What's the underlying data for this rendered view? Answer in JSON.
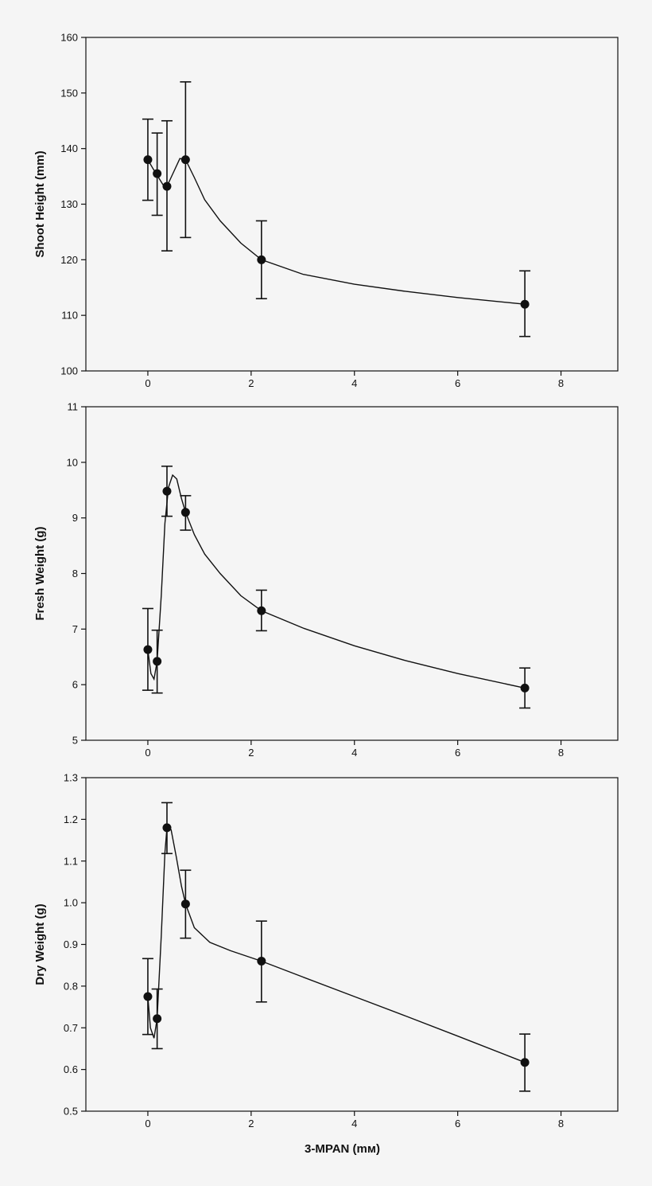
{
  "chart_data": [
    {
      "type": "scatter",
      "ylabel": "Shoot Height (mm)",
      "xlabel": "",
      "xlim": [
        -1.2,
        9.1
      ],
      "ylim": [
        100,
        160
      ],
      "xticks": [
        0,
        2,
        4,
        6,
        8
      ],
      "yticks": [
        100,
        110,
        120,
        130,
        140,
        150,
        160
      ],
      "tick_labels_y": [
        "100",
        "110",
        "120",
        "130",
        "140",
        "150",
        "160"
      ],
      "x": [
        0,
        0.18,
        0.37,
        0.73,
        2.2,
        7.3
      ],
      "y": [
        138,
        135.5,
        133.2,
        138,
        120,
        112
      ],
      "yerr_low": [
        130.7,
        128,
        121.6,
        124,
        113,
        106.2
      ],
      "yerr_high": [
        145.3,
        142.8,
        145,
        152,
        127,
        118
      ],
      "curve": [
        [
          0,
          138
        ],
        [
          0.1,
          136.4
        ],
        [
          0.2,
          134.9
        ],
        [
          0.3,
          133.4
        ],
        [
          0.4,
          133.8
        ],
        [
          0.5,
          135.8
        ],
        [
          0.62,
          138.2
        ],
        [
          0.73,
          138
        ],
        [
          0.9,
          134.8
        ],
        [
          1.1,
          130.8
        ],
        [
          1.4,
          127
        ],
        [
          1.8,
          123
        ],
        [
          2.2,
          120
        ],
        [
          3,
          117.4
        ],
        [
          4,
          115.6
        ],
        [
          5,
          114.3
        ],
        [
          6,
          113.2
        ],
        [
          7.3,
          112
        ]
      ]
    },
    {
      "type": "scatter",
      "ylabel": "Fresh Weight (g)",
      "xlabel": "",
      "xlim": [
        -1.2,
        9.1
      ],
      "ylim": [
        5,
        11
      ],
      "xticks": [
        0,
        2,
        4,
        6,
        8
      ],
      "yticks": [
        5,
        6,
        7,
        8,
        9,
        10,
        11
      ],
      "tick_labels_y": [
        "5",
        "6",
        "7",
        "8",
        "9",
        "10",
        "11"
      ],
      "x": [
        0,
        0.18,
        0.37,
        0.73,
        2.2,
        7.3
      ],
      "y": [
        6.63,
        6.42,
        9.48,
        9.1,
        7.33,
        5.94
      ],
      "yerr_low": [
        5.9,
        5.85,
        9.03,
        8.78,
        6.97,
        5.58
      ],
      "yerr_high": [
        7.37,
        6.98,
        9.93,
        9.4,
        7.7,
        6.3
      ],
      "curve": [
        [
          0,
          6.63
        ],
        [
          0.06,
          6.2
        ],
        [
          0.12,
          6.1
        ],
        [
          0.18,
          6.42
        ],
        [
          0.26,
          7.6
        ],
        [
          0.33,
          8.9
        ],
        [
          0.4,
          9.55
        ],
        [
          0.48,
          9.77
        ],
        [
          0.56,
          9.7
        ],
        [
          0.65,
          9.35
        ],
        [
          0.73,
          9.1
        ],
        [
          0.9,
          8.7
        ],
        [
          1.1,
          8.35
        ],
        [
          1.4,
          8
        ],
        [
          1.8,
          7.6
        ],
        [
          2.2,
          7.33
        ],
        [
          3,
          7.02
        ],
        [
          4,
          6.7
        ],
        [
          5,
          6.43
        ],
        [
          6,
          6.2
        ],
        [
          7.3,
          5.94
        ]
      ]
    },
    {
      "type": "scatter",
      "ylabel": "Dry Weight (g)",
      "xlabel": "3-MPAN  (mм)",
      "xlim": [
        -1.2,
        9.1
      ],
      "ylim": [
        0.5,
        1.3
      ],
      "xticks": [
        0,
        2,
        4,
        6,
        8
      ],
      "yticks": [
        0.5,
        0.6,
        0.7,
        0.8,
        0.9,
        1.0,
        1.1,
        1.2,
        1.3
      ],
      "tick_labels_y": [
        "0.5",
        "0.6",
        "0.7",
        "0.8",
        "0.9",
        "1.0",
        "1.1",
        "1.2",
        "1.3"
      ],
      "x": [
        0,
        0.18,
        0.37,
        0.73,
        2.2,
        7.3
      ],
      "y": [
        0.775,
        0.722,
        1.18,
        0.997,
        0.86,
        0.617
      ],
      "yerr_low": [
        0.684,
        0.65,
        1.118,
        0.915,
        0.762,
        0.548
      ],
      "yerr_high": [
        0.866,
        0.793,
        1.24,
        1.078,
        0.956,
        0.685
      ],
      "curve": [
        [
          0,
          0.775
        ],
        [
          0.05,
          0.7
        ],
        [
          0.12,
          0.675
        ],
        [
          0.18,
          0.722
        ],
        [
          0.26,
          0.92
        ],
        [
          0.33,
          1.12
        ],
        [
          0.37,
          1.18
        ],
        [
          0.45,
          1.175
        ],
        [
          0.55,
          1.11
        ],
        [
          0.65,
          1.04
        ],
        [
          0.73,
          0.997
        ],
        [
          0.9,
          0.94
        ],
        [
          1.2,
          0.905
        ],
        [
          1.6,
          0.885
        ],
        [
          2.2,
          0.86
        ],
        [
          3,
          0.822
        ],
        [
          4,
          0.775
        ],
        [
          5,
          0.728
        ],
        [
          6,
          0.68
        ],
        [
          7.3,
          0.617
        ]
      ]
    }
  ],
  "x_tick_labels": [
    "0",
    "2",
    "4",
    "6",
    "8"
  ]
}
